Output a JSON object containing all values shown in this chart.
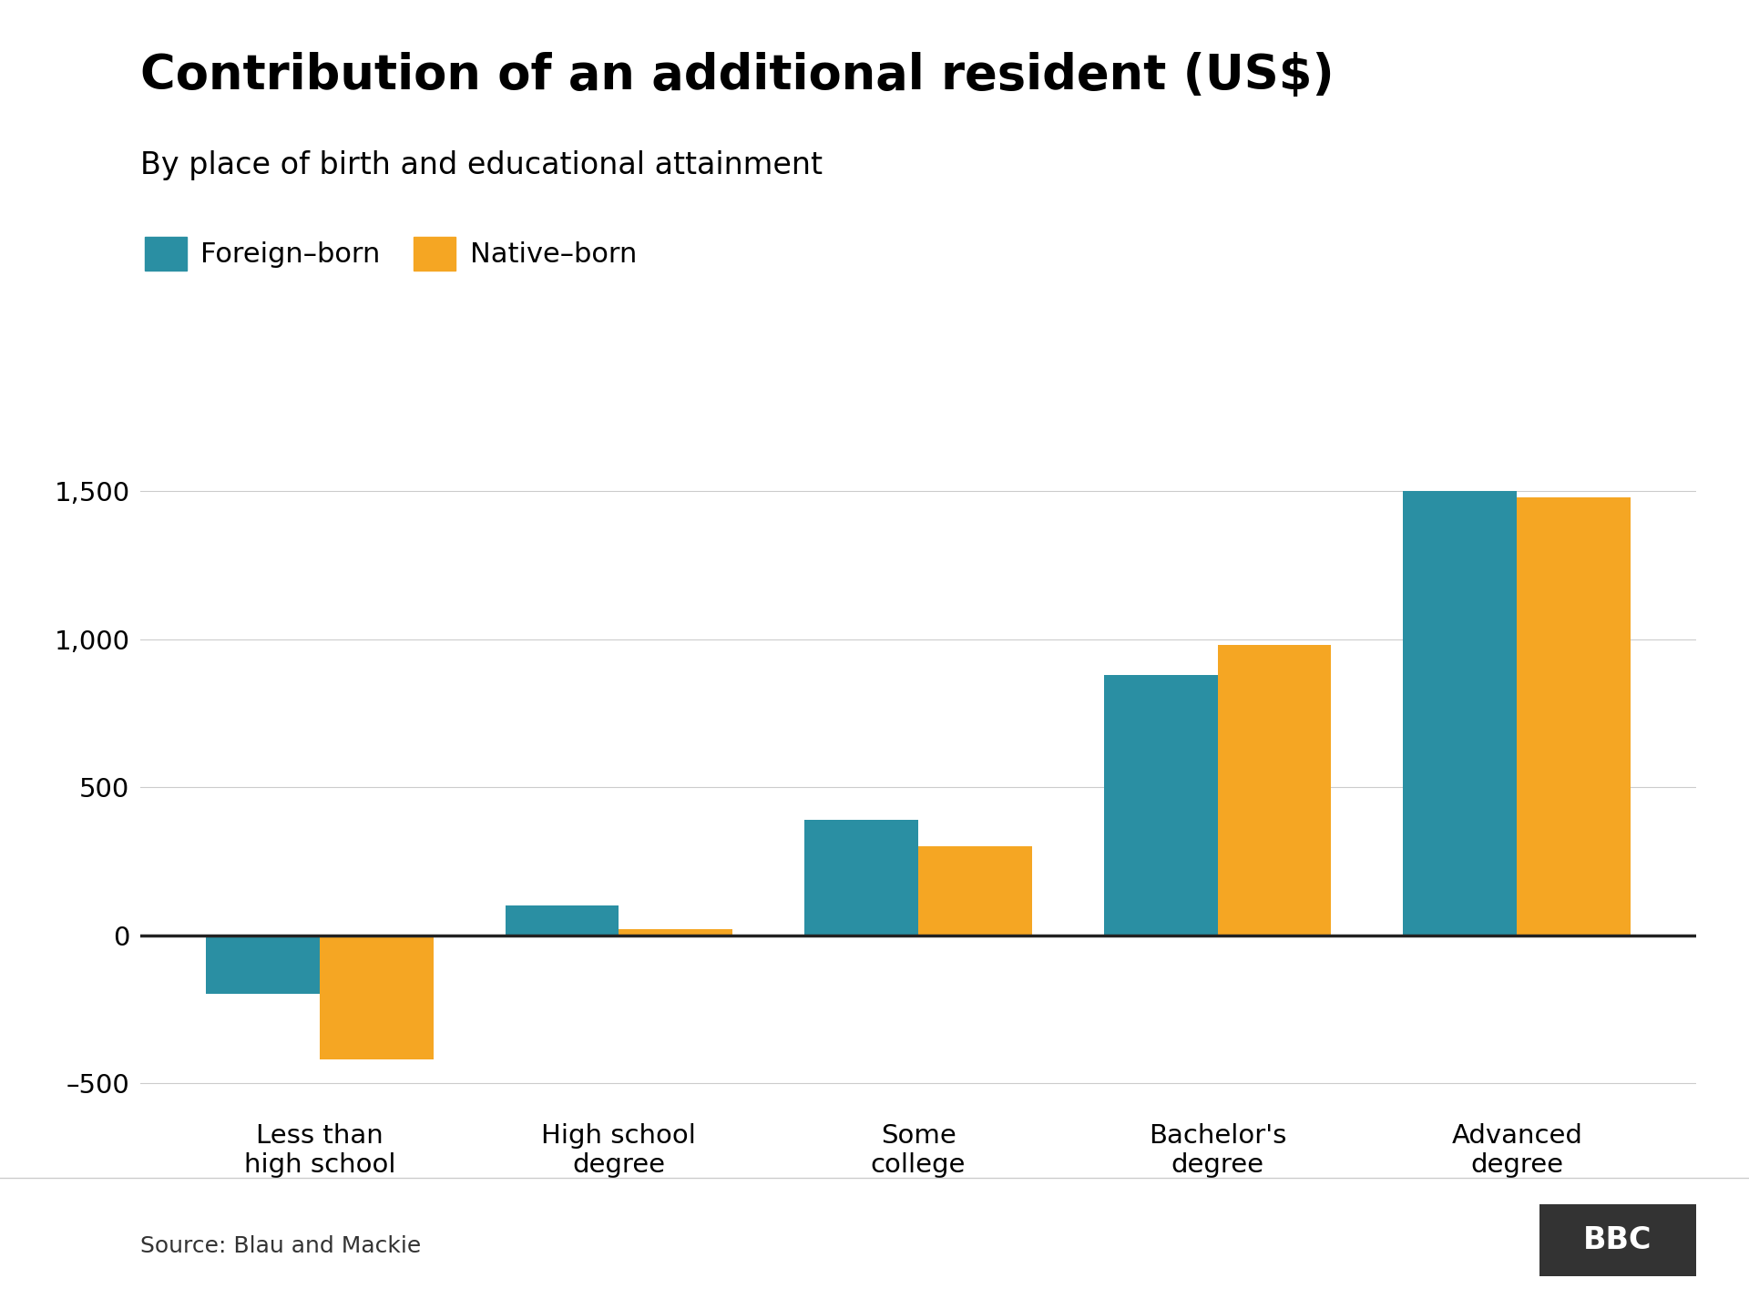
{
  "title": "Contribution of an additional resident (US$)",
  "subtitle": "By place of birth and educational attainment",
  "categories": [
    "Less than\nhigh school",
    "High school\ndegree",
    "Some\ncollege",
    "Bachelor's\ndegree",
    "Advanced\ndegree"
  ],
  "foreign_born": [
    -200,
    100,
    390,
    880,
    1500
  ],
  "native_born": [
    -420,
    20,
    300,
    980,
    1480
  ],
  "foreign_color": "#2a8fa3",
  "native_color": "#f5a623",
  "legend_foreign": "Foreign–born",
  "legend_native": "Native–born",
  "ylim": [
    -600,
    1700
  ],
  "yticks": [
    -500,
    0,
    500,
    1000,
    1500
  ],
  "ytick_labels": [
    "–500",
    "0",
    "500",
    "1,000",
    "1,500"
  ],
  "background_color": "#ffffff",
  "grid_color": "#cccccc",
  "source_text": "Source: Blau and Mackie",
  "bbc_text": "BBC",
  "title_fontsize": 38,
  "subtitle_fontsize": 24,
  "legend_fontsize": 22,
  "tick_fontsize": 21,
  "source_fontsize": 18,
  "bar_width": 0.38,
  "zero_line_color": "#222222"
}
